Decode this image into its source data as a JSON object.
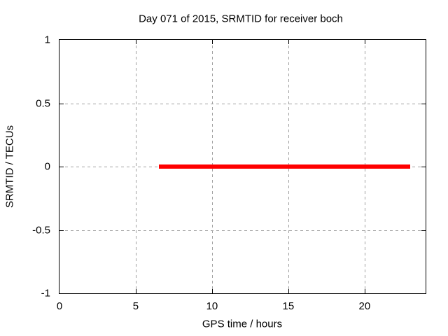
{
  "chart_data": {
    "type": "line",
    "title": "Day 071 of 2015, SRMTID for receiver boch",
    "xlabel": "GPS time / hours",
    "ylabel": "SRMTID / TECUs",
    "xlim": [
      0,
      24
    ],
    "ylim": [
      -1,
      1
    ],
    "x_ticks": [
      0,
      5,
      10,
      15,
      20
    ],
    "y_ticks": [
      1,
      0.5,
      0,
      -0.5,
      -1
    ],
    "grid": true,
    "legend_position": "none",
    "colors": {
      "background": "#ffffff",
      "axis": "#000000",
      "grid": "#a0a0a0",
      "line": "#ff0000"
    },
    "series": [
      {
        "name": "SRMTID",
        "color": "#ff0000",
        "line_thickness_px": 6,
        "x": [
          6.5,
          23
        ],
        "y": [
          0,
          0
        ]
      }
    ]
  }
}
